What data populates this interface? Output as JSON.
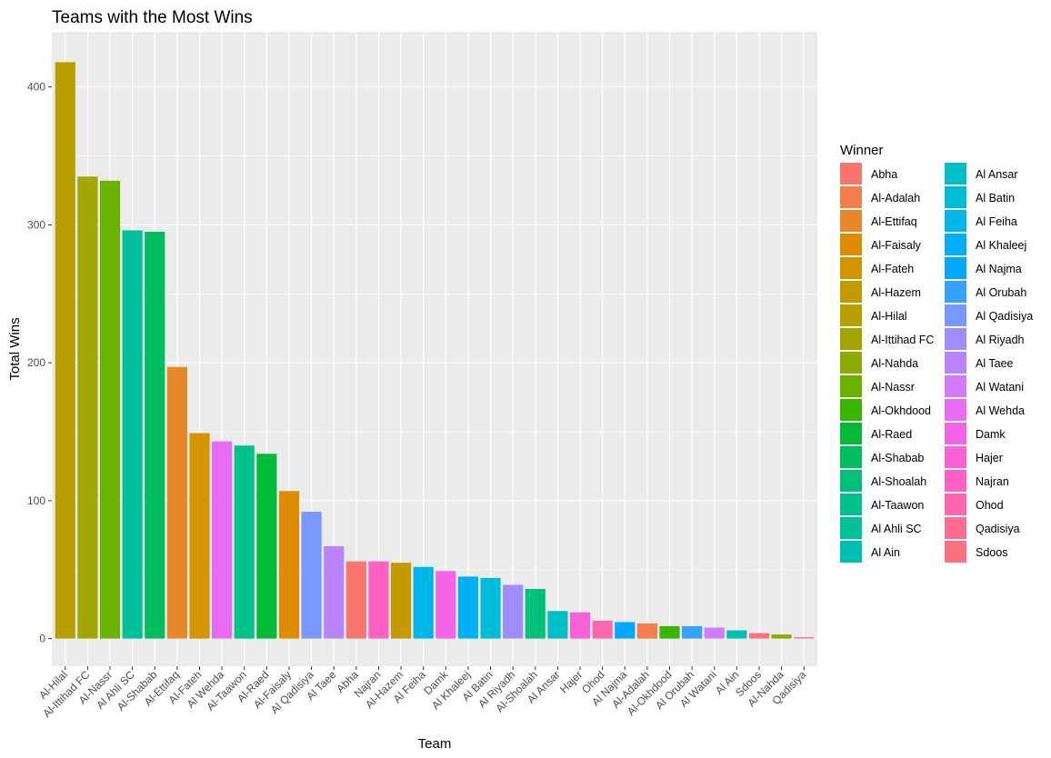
{
  "chart_data": {
    "type": "bar",
    "title": "Teams with the Most Wins",
    "xlabel": "Team",
    "ylabel": "Total Wins",
    "ylim": [
      -20,
      440
    ],
    "yticks": [
      0,
      100,
      200,
      300,
      400
    ],
    "grid": true,
    "legend_title": "Winner",
    "legend_position": "right",
    "categories": [
      "Al-Hilal",
      "Al-Ittihad FC",
      "Al-Nassr",
      "Al Ahli SC",
      "Al-Shabab",
      "Al-Ettifaq",
      "Al-Fateh",
      "Al Wehda",
      "Al-Taawon",
      "Al-Raed",
      "Al-Faisaly",
      "Al Qadisiya",
      "Al Taee",
      "Abha",
      "Najran",
      "Al-Hazem",
      "Al Feiha",
      "Damk",
      "Al Khaleej",
      "Al Batin",
      "Al Riyadh",
      "Al-Shoalah",
      "Al Ansar",
      "Hajer",
      "Ohod",
      "Al Najma",
      "Al-Adalah",
      "Al-Okhdood",
      "Al Orubah",
      "Al Watani",
      "Al Ain",
      "Sdoos",
      "Al-Nahda",
      "Qadisiya"
    ],
    "values": [
      418,
      335,
      332,
      296,
      295,
      197,
      149,
      143,
      140,
      134,
      107,
      92,
      67,
      56,
      56,
      55,
      52,
      49,
      45,
      44,
      39,
      36,
      20,
      19,
      13,
      12,
      11,
      9,
      9,
      8,
      6,
      4,
      3,
      1
    ],
    "legend": [
      {
        "name": "Abha",
        "color": "#F8766D"
      },
      {
        "name": "Al-Adalah",
        "color": "#F07F4C"
      },
      {
        "name": "Al-Ettifaq",
        "color": "#E6872A"
      },
      {
        "name": "Al-Faisaly",
        "color": "#DE8C00"
      },
      {
        "name": "Al-Fateh",
        "color": "#D29400"
      },
      {
        "name": "Al-Hazem",
        "color": "#C49A00"
      },
      {
        "name": "Al-Hilal",
        "color": "#B79F00"
      },
      {
        "name": "Al-Ittihad FC",
        "color": "#A3A500"
      },
      {
        "name": "Al-Nahda",
        "color": "#8CAB00"
      },
      {
        "name": "Al-Nassr",
        "color": "#6BB100"
      },
      {
        "name": "Al-Okhdood",
        "color": "#3AB600"
      },
      {
        "name": "Al-Raed",
        "color": "#00BA38"
      },
      {
        "name": "Al-Shabab",
        "color": "#00BD5F"
      },
      {
        "name": "Al-Shoalah",
        "color": "#00C07A"
      },
      {
        "name": "Al-Taawon",
        "color": "#00C08B"
      },
      {
        "name": "Al Ahli SC",
        "color": "#00C19A"
      },
      {
        "name": "Al Ain",
        "color": "#00BFAE"
      },
      {
        "name": "Al Ansar",
        "color": "#00BFC4"
      },
      {
        "name": "Al Batin",
        "color": "#00BCD8"
      },
      {
        "name": "Al Feiha",
        "color": "#00B6E8"
      },
      {
        "name": "Al Khaleej",
        "color": "#00B0F6"
      },
      {
        "name": "Al Najma",
        "color": "#00A9FF"
      },
      {
        "name": "Al Orubah",
        "color": "#35A2FF"
      },
      {
        "name": "Al Qadisiya",
        "color": "#7997FF"
      },
      {
        "name": "Al Riyadh",
        "color": "#9F8CFF"
      },
      {
        "name": "Al Taee",
        "color": "#B983FF"
      },
      {
        "name": "Al Watani",
        "color": "#D17AFE"
      },
      {
        "name": "Al Wehda",
        "color": "#E76BF3"
      },
      {
        "name": "Damk",
        "color": "#F365E6"
      },
      {
        "name": "Hajer",
        "color": "#FB61D7"
      },
      {
        "name": "Najran",
        "color": "#FF61C3"
      },
      {
        "name": "Ohod",
        "color": "#FF65AE"
      },
      {
        "name": "Qadisiya",
        "color": "#FF6C92"
      },
      {
        "name": "Sdoos",
        "color": "#FC717F"
      }
    ],
    "panel_color": "#EBEBEB",
    "grid_color": "#FFFFFF"
  }
}
